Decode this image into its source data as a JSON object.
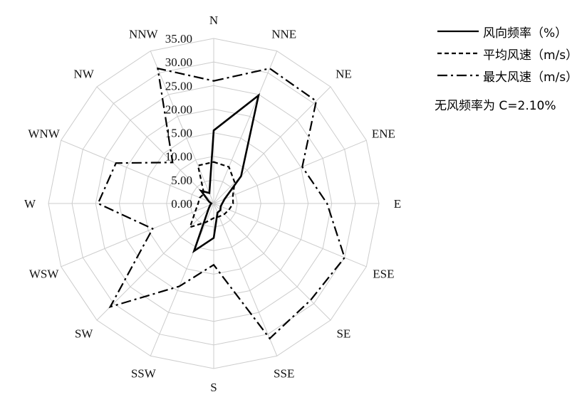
{
  "chart_data": {
    "type": "radar",
    "directions": [
      "N",
      "NNE",
      "NE",
      "ENE",
      "E",
      "ESE",
      "SE",
      "SSE",
      "S",
      "SSW",
      "SW",
      "WSW",
      "W",
      "WNW",
      "NW",
      "NNW"
    ],
    "radial_ticks": [
      "0.00",
      "5.00",
      "10.00",
      "15.00",
      "20.00",
      "25.00",
      "30.00",
      "35.00"
    ],
    "rlim": [
      0,
      35
    ],
    "grid": true,
    "legend_position": "top-right",
    "series": [
      {
        "name": "风向频率（%）",
        "line_style": "solid",
        "values": [
          15.5,
          24.8,
          8.2,
          2.5,
          1.8,
          1.6,
          2.0,
          2.1,
          7.3,
          10.9,
          1.5,
          0.8,
          0.5,
          1.1,
          3.8,
          2.4
        ]
      },
      {
        "name": "平均风速（m/s）",
        "line_style": "dashed",
        "values": [
          8.8,
          8.4,
          6.3,
          4.4,
          4.1,
          3.5,
          3.2,
          3.0,
          3.1,
          4.3,
          7.1,
          4.2,
          3.3,
          3.2,
          2.9,
          8.7
        ]
      },
      {
        "name": "最大风速（m/s）",
        "line_style": "dash-dot",
        "values": [
          26.0,
          31.0,
          30.7,
          20.3,
          24.0,
          30.0,
          29.0,
          31.0,
          13.0,
          19.0,
          31.0,
          14.0,
          24.5,
          22.4,
          12.3,
          31.0
        ]
      }
    ],
    "annotation": "无风频率为 C=2.10%"
  },
  "colors": {
    "series": "#000000",
    "grid": "#cccccc",
    "label": "#111111"
  }
}
